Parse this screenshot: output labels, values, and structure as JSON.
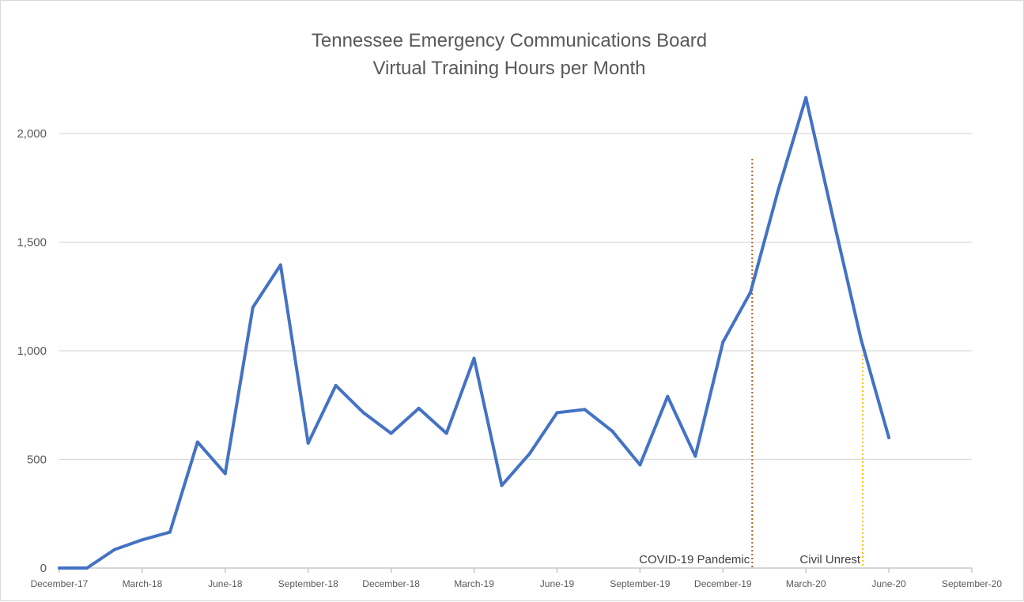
{
  "chart_data": {
    "type": "line",
    "title": [
      "Tennessee Emergency Communications Board",
      "Virtual Training Hours per Month"
    ],
    "xlabel": "",
    "ylabel": "",
    "ylim": [
      0,
      2000
    ],
    "y_ticks": [
      0,
      500,
      1000,
      1500,
      2000
    ],
    "y_tick_labels": [
      "0",
      "500",
      "1,000",
      "1,500",
      "2,000"
    ],
    "x_range": [
      "2017-12",
      "2020-09"
    ],
    "x_tick_labels": [
      "December-17",
      "March-18",
      "June-18",
      "September-18",
      "December-18",
      "March-19",
      "June-19",
      "September-19",
      "December-19",
      "March-20",
      "June-20",
      "September-20"
    ],
    "grid": "horizontal",
    "series": [
      {
        "color": "#4472c4",
        "x": [
          "2017-12",
          "2018-01",
          "2018-02",
          "2018-03",
          "2018-04",
          "2018-05",
          "2018-06",
          "2018-07",
          "2018-08",
          "2018-09",
          "2018-10",
          "2018-11",
          "2018-12",
          "2019-01",
          "2019-02",
          "2019-03",
          "2019-04",
          "2019-05",
          "2019-06",
          "2019-07",
          "2019-08",
          "2019-09",
          "2019-10",
          "2019-11",
          "2019-12",
          "2020-01",
          "2020-02",
          "2020-03",
          "2020-04",
          "2020-05",
          "2020-06"
        ],
        "values": [
          0,
          0,
          85,
          130,
          165,
          580,
          435,
          1200,
          1395,
          575,
          840,
          715,
          620,
          735,
          620,
          965,
          380,
          525,
          715,
          730,
          630,
          475,
          790,
          515,
          1040,
          1270,
          1740,
          2165,
          1600,
          1050,
          600
        ]
      }
    ],
    "annotations": [
      {
        "text": "COVID-19 Pandemic",
        "x": "2020-01",
        "color": "#c55a11",
        "style": "dotted"
      },
      {
        "text": "Civil Unrest",
        "x": "2020-05",
        "color": "#ffc000",
        "style": "dotted"
      }
    ]
  }
}
